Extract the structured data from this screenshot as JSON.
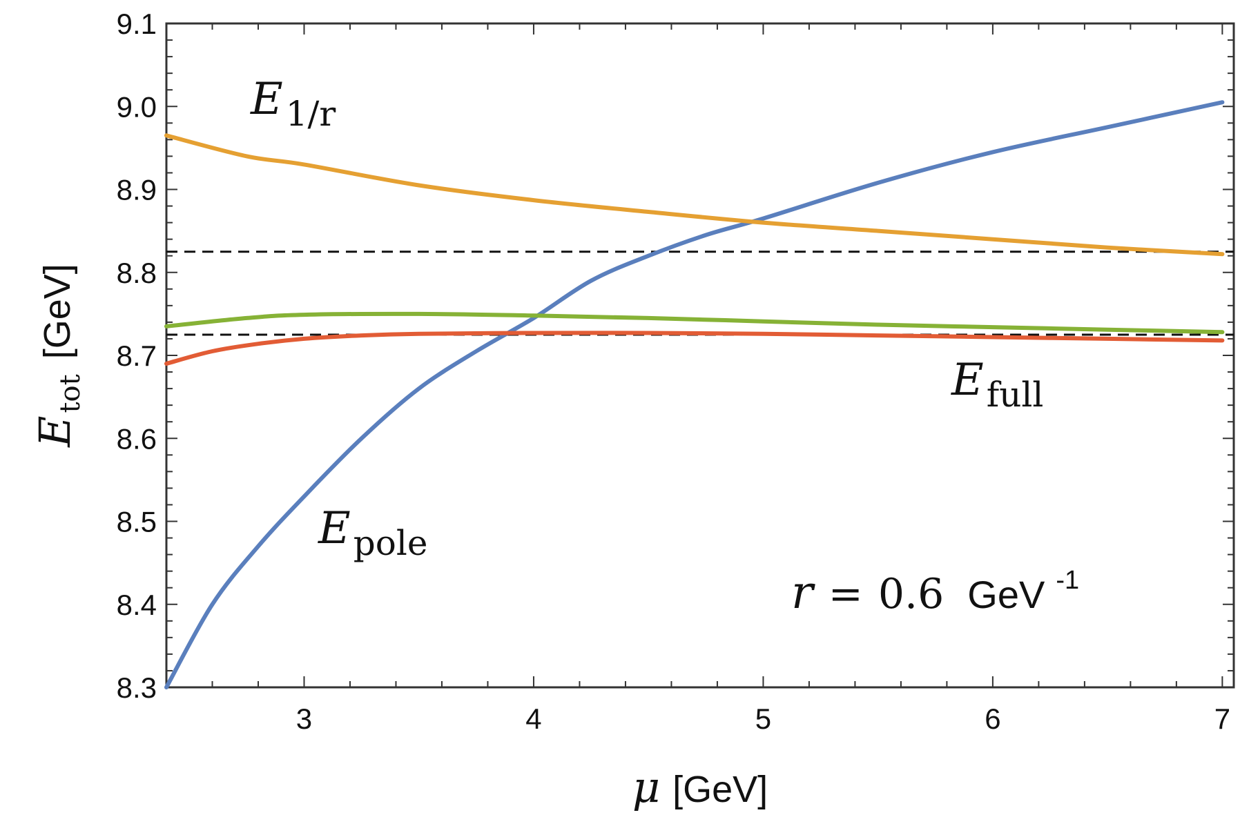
{
  "chart_data": {
    "type": "line",
    "xlabel_symbol": "μ",
    "xlabel_unit": "[GeV]",
    "ylabel_symbol": "E",
    "ylabel_subscript": "tot",
    "ylabel_unit": "[GeV]",
    "xlim": [
      2.4,
      7.05
    ],
    "ylim": [
      8.3,
      9.1
    ],
    "x_ticks": [
      3,
      4,
      5,
      6,
      7
    ],
    "x_tick_labels": [
      "3",
      "4",
      "5",
      "6",
      "7"
    ],
    "y_ticks": [
      8.3,
      8.4,
      8.5,
      8.6,
      8.7,
      8.8,
      8.9,
      9.0,
      9.1
    ],
    "y_tick_labels": [
      "8.3",
      "8.4",
      "8.5",
      "8.6",
      "8.7",
      "8.8",
      "8.9",
      "9.0",
      "9.1"
    ],
    "grid": false,
    "series": [
      {
        "key": "pole",
        "color": "#5a7fbd",
        "x": [
          2.4,
          2.6,
          2.8,
          3.0,
          3.25,
          3.5,
          3.75,
          4.0,
          4.25,
          4.5,
          4.75,
          5.0,
          5.5,
          6.0,
          6.5,
          7.0
        ],
        "y": [
          8.3,
          8.4,
          8.47,
          8.53,
          8.6,
          8.66,
          8.705,
          8.745,
          8.79,
          8.82,
          8.845,
          8.865,
          8.908,
          8.945,
          8.975,
          9.005
        ]
      },
      {
        "key": "inv_r",
        "color": "#e5a032",
        "x": [
          2.4,
          2.75,
          3.0,
          3.5,
          4.0,
          4.5,
          5.0,
          5.5,
          6.0,
          6.5,
          7.0
        ],
        "y": [
          8.965,
          8.94,
          8.93,
          8.905,
          8.887,
          8.873,
          8.86,
          8.85,
          8.84,
          8.83,
          8.822
        ]
      },
      {
        "key": "green",
        "color": "#86b236",
        "x": [
          2.4,
          2.75,
          3.0,
          3.5,
          4.0,
          4.5,
          5.0,
          5.5,
          6.0,
          6.5,
          7.0
        ],
        "y": [
          8.735,
          8.745,
          8.749,
          8.75,
          8.748,
          8.745,
          8.741,
          8.737,
          8.734,
          8.731,
          8.728
        ]
      },
      {
        "key": "full",
        "color": "#e25c35",
        "x": [
          2.4,
          2.6,
          2.8,
          3.0,
          3.25,
          3.5,
          4.0,
          4.5,
          5.0,
          5.5,
          6.0,
          6.5,
          7.0
        ],
        "y": [
          8.69,
          8.705,
          8.714,
          8.72,
          8.724,
          8.726,
          8.727,
          8.727,
          8.726,
          8.724,
          8.722,
          8.72,
          8.718
        ]
      }
    ],
    "reference_lines": [
      8.825,
      8.725
    ],
    "annotations": {
      "inv_r": {
        "symbol": "E",
        "subscript": "1/r"
      },
      "full": {
        "symbol": "E",
        "subscript": "full"
      },
      "pole": {
        "symbol": "E",
        "subscript": "pole"
      },
      "param": {
        "symbol": "r",
        "equals": "=",
        "value": "0.6",
        "unit": "GeV",
        "exponent": "-1"
      }
    }
  }
}
